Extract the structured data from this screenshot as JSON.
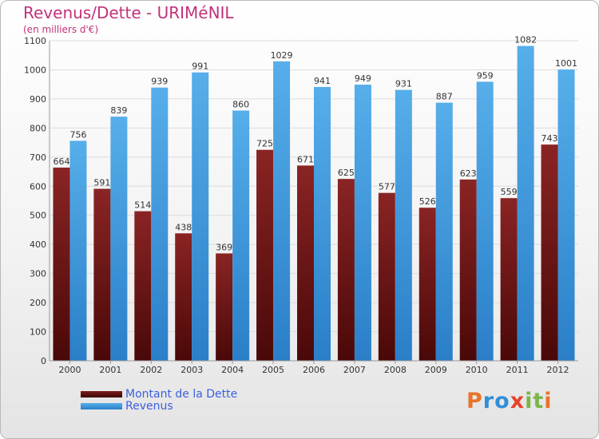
{
  "header": {
    "title": "Revenus/Dette - URIMéNIL",
    "subtitle": "(en milliers d'€)"
  },
  "legend": {
    "dette_label": "Montant de la Dette",
    "revenus_label": "Revenus"
  },
  "logo": {
    "text": "Proxiti",
    "letter_colors": [
      "#e8732a",
      "#2f8fd8",
      "#2f8fd8",
      "#e8412a",
      "#7ab648",
      "#7ab648",
      "#e8732a"
    ]
  },
  "colors": {
    "dette": "#7a1c1c",
    "dette_dark": "#4a0808",
    "revenus": "#4aa3e6",
    "revenus_dark": "#2a7fc8",
    "grid": "#dcdcdc",
    "axis_text": "#333333",
    "title": "#c1327a"
  },
  "chart_data": {
    "type": "bar",
    "categories": [
      "2000",
      "2001",
      "2002",
      "2003",
      "2004",
      "2005",
      "2006",
      "2007",
      "2008",
      "2009",
      "2010",
      "2011",
      "2012"
    ],
    "series": [
      {
        "name": "Montant de la Dette",
        "values": [
          664,
          591,
          514,
          438,
          369,
          725,
          671,
          625,
          577,
          526,
          623,
          559,
          743
        ]
      },
      {
        "name": "Revenus",
        "values": [
          756,
          839,
          939,
          991,
          860,
          1029,
          941,
          949,
          931,
          887,
          959,
          1082,
          1001
        ]
      }
    ],
    "yticks": [
      0,
      100,
      200,
      300,
      400,
      500,
      600,
      700,
      800,
      900,
      1000,
      1100
    ],
    "ylim": [
      0,
      1100
    ],
    "grid": true,
    "legend_position": "bottom-left",
    "title": "Revenus/Dette - URIMéNIL",
    "ylabel": "(en milliers d'€)"
  }
}
